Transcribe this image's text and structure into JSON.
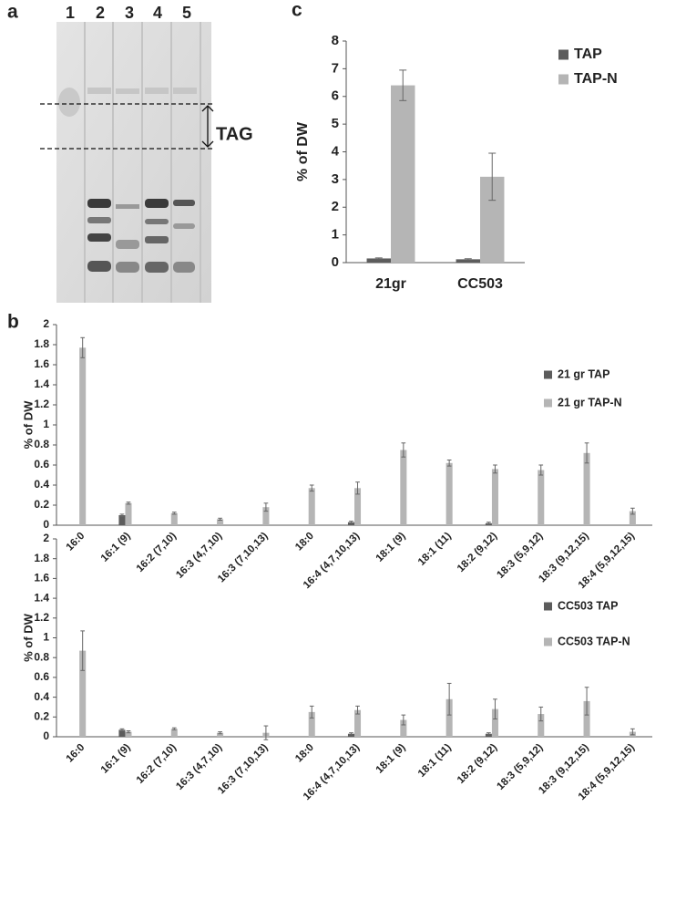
{
  "panel_labels": [
    "a",
    "b",
    "c"
  ],
  "gel": {
    "lanes": [
      "1",
      "2",
      "3",
      "4",
      "5"
    ],
    "band_label": "TAG"
  },
  "chart_data": [
    {
      "type": "bar",
      "y_label": "% of DW",
      "categories": [
        "21gr",
        "CC503"
      ],
      "series": [
        {
          "name": "TAP",
          "color": "#5c5c5c",
          "values": [
            0.15,
            0.12
          ],
          "errors": [
            0.02,
            0.02
          ]
        },
        {
          "name": "TAP-N",
          "color": "#b5b5b5",
          "values": [
            6.4,
            3.1
          ],
          "errors": [
            0.55,
            0.85
          ]
        }
      ],
      "ylim": [
        0,
        8
      ],
      "yticks": [
        0,
        1,
        2,
        3,
        4,
        5,
        6,
        7,
        8
      ],
      "grid": false,
      "legend": "top-right"
    },
    {
      "type": "bar",
      "y_label": "% of DW",
      "categories": [
        "16:0",
        "16:1 (9)",
        "16:2 (7,10)",
        "16:3 (4,7,10)",
        "16:3 (7,10,13)",
        "18:0",
        "16:4 (4,7,10,13)",
        "18:1 (9)",
        "18:1 (11)",
        "18:2 (9,12)",
        "18:3 (5,9,12)",
        "18:3 (9,12,15)",
        "18:4 (5,9,12,15)"
      ],
      "series": [
        {
          "name": "21 gr TAP",
          "color": "#5c5c5c",
          "values": [
            0,
            0.1,
            0,
            0,
            0,
            0,
            0.03,
            0,
            0,
            0.02,
            0,
            0,
            0
          ],
          "errors": [
            null,
            0.01,
            null,
            null,
            null,
            null,
            0.01,
            null,
            null,
            0.01,
            null,
            null,
            null
          ]
        },
        {
          "name": "21 gr TAP-N",
          "color": "#b5b5b5",
          "values": [
            1.77,
            0.22,
            0.12,
            0.06,
            0.18,
            0.37,
            0.37,
            0.75,
            0.62,
            0.56,
            0.55,
            0.72,
            0.14
          ],
          "errors": [
            0.1,
            0.01,
            0.01,
            0.01,
            0.04,
            0.03,
            0.06,
            0.07,
            0.03,
            0.04,
            0.05,
            0.1,
            0.03
          ]
        }
      ],
      "ylim": [
        0,
        2
      ],
      "yticks": [
        0,
        0.2,
        0.4,
        0.6,
        0.8,
        1,
        1.2,
        1.4,
        1.6,
        1.8,
        2
      ],
      "grid": false,
      "legend": "top-right"
    },
    {
      "type": "bar",
      "y_label": "% of DW",
      "categories": [
        "16:0",
        "16:1 (9)",
        "16:2 (7,10)",
        "16:3 (4,7,10)",
        "16:3 (7,10,13)",
        "18:0",
        "16:4 (4,7,10,13)",
        "18:1 (9)",
        "18:1 (11)",
        "18:2 (9,12)",
        "18:3 (5,9,12)",
        "18:3 (9,12,15)",
        "18:4 (5,9,12,15)"
      ],
      "series": [
        {
          "name": "CC503 TAP",
          "color": "#5c5c5c",
          "values": [
            0,
            0.07,
            0,
            0,
            0,
            0,
            0.03,
            0,
            0,
            0.03,
            0,
            0,
            0
          ],
          "errors": [
            null,
            0.01,
            null,
            null,
            null,
            null,
            0.01,
            null,
            null,
            0.01,
            null,
            null,
            null
          ]
        },
        {
          "name": "CC503 TAP-N",
          "color": "#b5b5b5",
          "values": [
            0.87,
            0.05,
            0.08,
            0.04,
            0.04,
            0.25,
            0.27,
            0.17,
            0.38,
            0.28,
            0.23,
            0.36,
            0.05
          ],
          "errors": [
            0.2,
            0.01,
            0.01,
            0.01,
            0.07,
            0.06,
            0.04,
            0.05,
            0.16,
            0.1,
            0.07,
            0.14,
            0.03
          ]
        }
      ],
      "ylim": [
        0,
        2
      ],
      "yticks": [
        0,
        0.2,
        0.4,
        0.6,
        0.8,
        1,
        1.2,
        1.4,
        1.6,
        1.8,
        2
      ],
      "grid": false,
      "legend": "top-right"
    }
  ]
}
